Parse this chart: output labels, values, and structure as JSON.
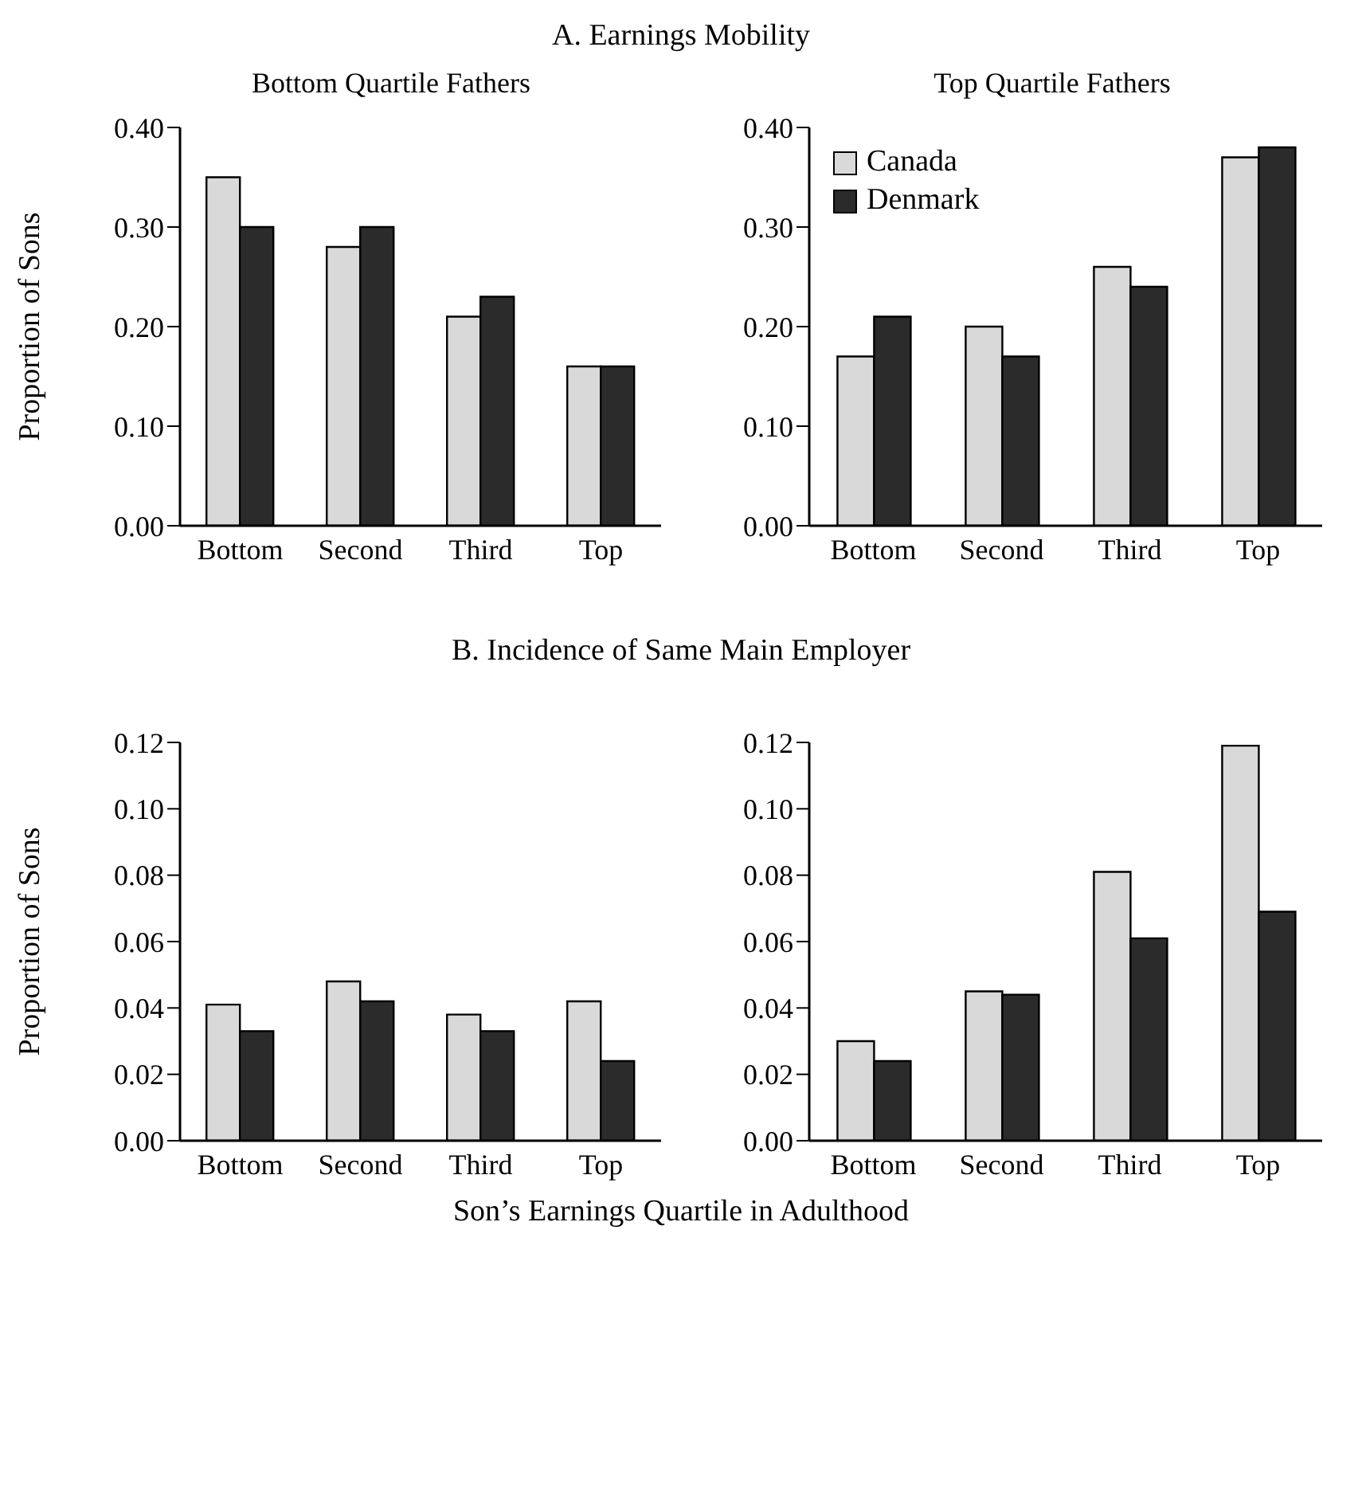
{
  "chart_data": [
    {
      "type": "bar",
      "title": "A. Earnings Mobility",
      "subtitle": "Bottom Quartile Fathers",
      "ylabel": "Proportion of Sons",
      "categories": [
        "Bottom",
        "Second",
        "Third",
        "Top"
      ],
      "series": [
        {
          "color": "#d9d9d9",
          "values": [
            0.35,
            0.28,
            0.21,
            0.16
          ]
        },
        {
          "color": "#2b2b2b",
          "values": [
            0.3,
            0.3,
            0.23,
            0.16
          ]
        }
      ],
      "ylim": [
        0,
        0.4
      ],
      "yticks": [
        {
          "value": 0,
          "label": "0.00"
        },
        {
          "value": 0.1,
          "label": "0.10"
        },
        {
          "value": 0.2,
          "label": "0.20"
        },
        {
          "value": 0.3,
          "label": "0.30"
        },
        {
          "value": 0.4,
          "label": "0.40"
        }
      ]
    },
    {
      "type": "bar",
      "subtitle": "Top Quartile Fathers",
      "categories": [
        "Bottom",
        "Second",
        "Third",
        "Top"
      ],
      "legend": "top left",
      "series": [
        {
          "name": "Canada",
          "color": "#d9d9d9",
          "values": [
            0.17,
            0.2,
            0.26,
            0.37
          ]
        },
        {
          "name": "Denmark",
          "color": "#2b2b2b",
          "values": [
            0.21,
            0.17,
            0.24,
            0.38
          ]
        }
      ],
      "ylim": [
        0,
        0.4
      ],
      "yticks": [
        {
          "value": 0,
          "label": "0.00"
        },
        {
          "value": 0.1,
          "label": "0.10"
        },
        {
          "value": 0.2,
          "label": "0.20"
        },
        {
          "value": 0.3,
          "label": "0.30"
        },
        {
          "value": 0.4,
          "label": "0.40"
        }
      ]
    },
    {
      "type": "bar",
      "title": "B. Incidence of Same Main Employer",
      "ylabel": "Proportion of Sons",
      "xlabel": "Son’s Earnings Quartile in Adulthood",
      "categories": [
        "Bottom",
        "Second",
        "Third",
        "Top"
      ],
      "series": [
        {
          "color": "#d9d9d9",
          "values": [
            0.041,
            0.048,
            0.038,
            0.042
          ]
        },
        {
          "color": "#2b2b2b",
          "values": [
            0.033,
            0.042,
            0.033,
            0.024
          ]
        }
      ],
      "ylim": [
        0,
        0.12
      ],
      "yticks": [
        {
          "value": 0,
          "label": "0.00"
        },
        {
          "value": 0.02,
          "label": "0.02"
        },
        {
          "value": 0.04,
          "label": "0.04"
        },
        {
          "value": 0.06,
          "label": "0.06"
        },
        {
          "value": 0.08,
          "label": "0.08"
        },
        {
          "value": 0.1,
          "label": "0.10"
        },
        {
          "value": 0.12,
          "label": "0.12"
        }
      ]
    },
    {
      "type": "bar",
      "categories": [
        "Bottom",
        "Second",
        "Third",
        "Top"
      ],
      "series": [
        {
          "color": "#d9d9d9",
          "values": [
            0.03,
            0.045,
            0.081,
            0.119
          ]
        },
        {
          "color": "#2b2b2b",
          "values": [
            0.024,
            0.044,
            0.061,
            0.069
          ]
        }
      ],
      "ylim": [
        0,
        0.12
      ],
      "yticks": [
        {
          "value": 0,
          "label": "0.00"
        },
        {
          "value": 0.02,
          "label": "0.02"
        },
        {
          "value": 0.04,
          "label": "0.04"
        },
        {
          "value": 0.06,
          "label": "0.06"
        },
        {
          "value": 0.08,
          "label": "0.08"
        },
        {
          "value": 0.1,
          "label": "0.10"
        },
        {
          "value": 0.12,
          "label": "0.12"
        }
      ]
    }
  ]
}
